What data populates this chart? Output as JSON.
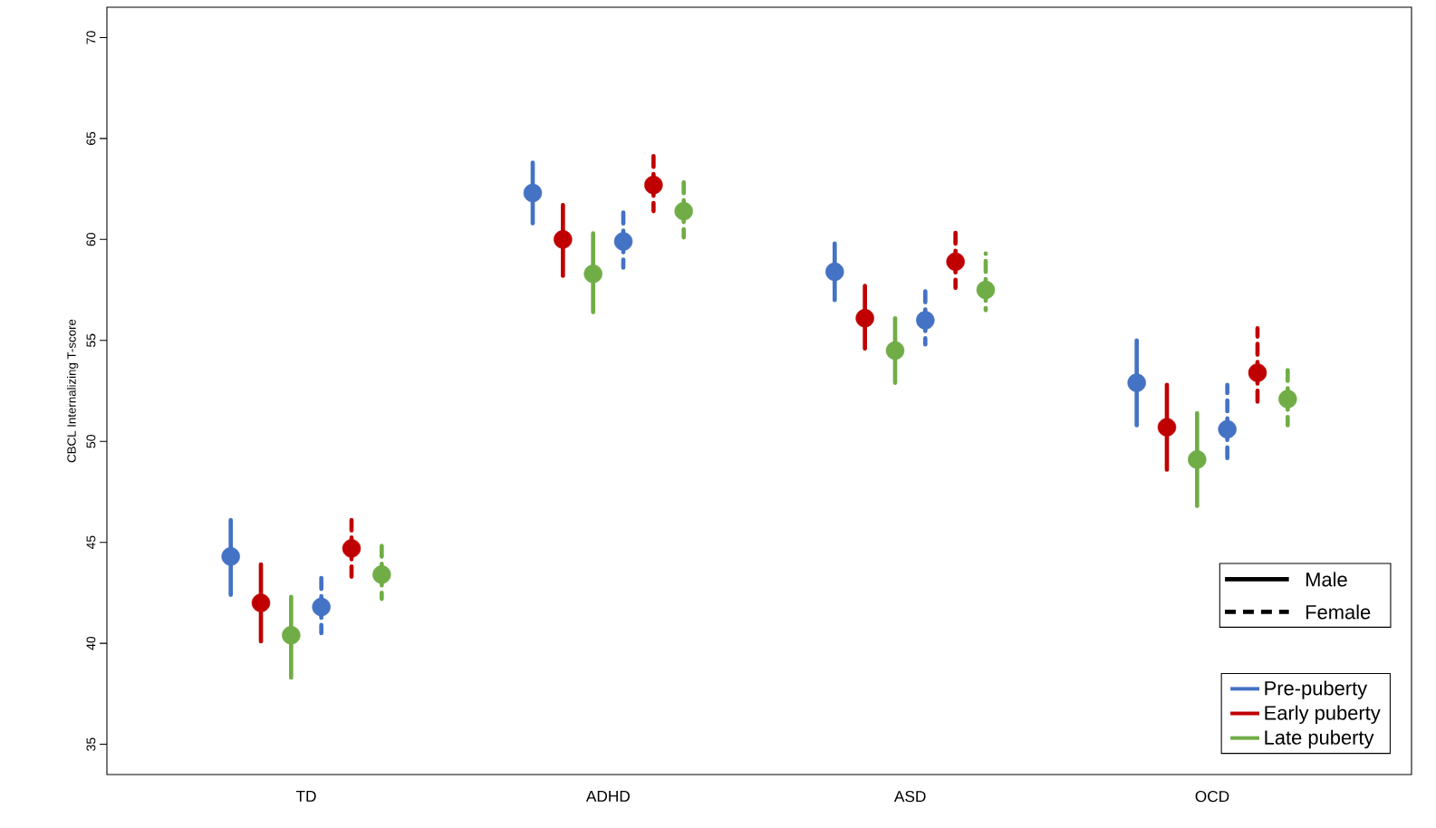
{
  "chart_data": {
    "type": "scatter",
    "ylabel": "CBCL Internalizing T-score",
    "categories": [
      "TD",
      "ADHD",
      "ASD",
      "OCD"
    ],
    "ylim": [
      33.5,
      71.5
    ],
    "yticks": [
      35,
      40,
      45,
      50,
      55,
      60,
      65,
      70
    ],
    "legend": "bottom right",
    "grid": false,
    "annotations": [
      "Male",
      "Female"
    ],
    "series": [
      {
        "name": "Pre-puberty",
        "color": "#4472c4",
        "line_style": "solid",
        "values": [
          44.3,
          62.3,
          58.4,
          52.9
        ],
        "errors": [
          [
            42.4,
            46.1
          ],
          [
            60.8,
            63.8
          ],
          [
            57.0,
            59.8
          ],
          [
            50.8,
            55.0
          ]
        ]
      },
      {
        "name": "Early puberty",
        "color": "#c00000",
        "line_style": "solid",
        "values": [
          42.0,
          60.0,
          56.1,
          50.7
        ],
        "errors": [
          [
            40.1,
            43.9
          ],
          [
            58.2,
            61.7
          ],
          [
            54.6,
            57.7
          ],
          [
            48.6,
            52.8
          ]
        ]
      },
      {
        "name": "Late puberty",
        "color": "#70ad47",
        "line_style": "solid",
        "values": [
          40.4,
          58.3,
          54.5,
          49.1
        ],
        "errors": [
          [
            38.3,
            42.3
          ],
          [
            56.4,
            60.3
          ],
          [
            52.9,
            56.1
          ],
          [
            46.8,
            51.4
          ]
        ]
      },
      {
        "color": "#4472c4",
        "line_style": "dashed",
        "values": [
          41.8,
          59.9,
          56.0,
          50.6
        ],
        "errors": [
          [
            40.5,
            43.3
          ],
          [
            58.6,
            61.4
          ],
          [
            54.8,
            57.5
          ],
          [
            49.0,
            52.8
          ]
        ]
      },
      {
        "color": "#c00000",
        "line_style": "dashed",
        "values": [
          44.7,
          62.7,
          58.9,
          53.4
        ],
        "errors": [
          [
            43.3,
            46.1
          ],
          [
            61.4,
            64.2
          ],
          [
            57.6,
            60.4
          ],
          [
            51.9,
            55.6
          ]
        ]
      },
      {
        "color": "#70ad47",
        "line_style": "dashed",
        "values": [
          43.4,
          61.4,
          57.5,
          52.1
        ],
        "errors": [
          [
            42.2,
            45.0
          ],
          [
            60.1,
            63.0
          ],
          [
            56.5,
            59.3
          ],
          [
            50.8,
            53.6
          ]
        ]
      }
    ]
  }
}
